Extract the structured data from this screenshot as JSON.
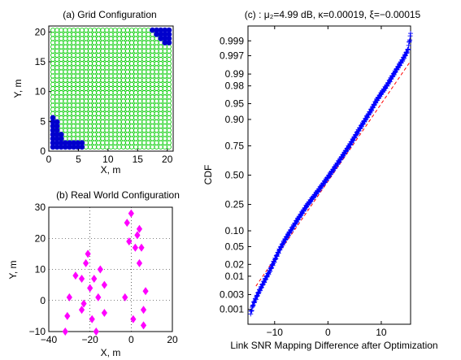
{
  "chart_data": [
    {
      "type": "scatter",
      "title": "(a)   Grid Configuration",
      "xlabel": "X, m",
      "ylabel": "Y, m",
      "xlim": [
        0,
        21
      ],
      "ylim": [
        0,
        21
      ],
      "x_ticks": [
        "0",
        "5",
        "10",
        "15",
        "20"
      ],
      "y_ticks": [
        "0",
        "5",
        "10",
        "15",
        "20"
      ],
      "grid": false,
      "colors": {
        "grid_marker": "#00cc00",
        "selected_marker": "#0000cc"
      },
      "grid_points": {
        "spacing": 0.7,
        "start": 0.7,
        "end": 20.3
      },
      "series": [
        {
          "values": [
            [
              0.7,
              0.7
            ],
            [
              1.4,
              0.7
            ],
            [
              2.1,
              0.7
            ],
            [
              2.8,
              0.7
            ],
            [
              3.5,
              0.7
            ],
            [
              4.2,
              0.7
            ],
            [
              4.9,
              0.7
            ],
            [
              5.6,
              0.7
            ],
            [
              0.7,
              1.4
            ],
            [
              1.4,
              1.4
            ],
            [
              2.1,
              1.4
            ],
            [
              2.8,
              1.4
            ],
            [
              3.5,
              1.4
            ],
            [
              4.2,
              1.4
            ],
            [
              4.9,
              1.4
            ],
            [
              5.6,
              1.4
            ],
            [
              0.7,
              2.1
            ],
            [
              1.4,
              2.1
            ],
            [
              2.1,
              2.1
            ],
            [
              0.7,
              2.8
            ],
            [
              1.4,
              2.8
            ],
            [
              2.1,
              2.8
            ],
            [
              0.7,
              3.5
            ],
            [
              1.4,
              3.5
            ],
            [
              0.7,
              4.2
            ],
            [
              1.4,
              4.2
            ],
            [
              0.7,
              4.9
            ],
            [
              1.4,
              4.9
            ],
            [
              0.7,
              5.6
            ],
            [
              17.5,
              20.3
            ],
            [
              18.2,
              20.3
            ],
            [
              18.9,
              20.3
            ],
            [
              19.6,
              20.3
            ],
            [
              20.3,
              20.3
            ],
            [
              18.2,
              19.6
            ],
            [
              18.9,
              19.6
            ],
            [
              19.6,
              19.6
            ],
            [
              20.3,
              19.6
            ],
            [
              18.9,
              18.9
            ],
            [
              19.6,
              18.9
            ],
            [
              20.3,
              18.9
            ],
            [
              19.6,
              18.2
            ],
            [
              20.3,
              18.2
            ]
          ]
        }
      ]
    },
    {
      "type": "scatter",
      "title": "(b)   Real World Configuration",
      "xlabel": "X, m",
      "ylabel": "Y, m",
      "xlim": [
        -40,
        20
      ],
      "ylim": [
        -10,
        30
      ],
      "x_ticks": [
        "−40",
        "−20",
        "0",
        "20"
      ],
      "y_ticks": [
        "−10",
        "0",
        "10",
        "20",
        "30"
      ],
      "grid": true,
      "colors": {
        "marker": "#ff00ff"
      },
      "series": [
        {
          "values": [
            [
              -32,
              -10
            ],
            [
              -31,
              -5
            ],
            [
              -30,
              1
            ],
            [
              -27,
              8
            ],
            [
              -24,
              -3
            ],
            [
              -24,
              7
            ],
            [
              -23,
              -1
            ],
            [
              -22,
              12
            ],
            [
              -21,
              15
            ],
            [
              -20,
              4
            ],
            [
              -19,
              -6
            ],
            [
              -18,
              7
            ],
            [
              -17,
              -10
            ],
            [
              -16,
              1
            ],
            [
              -15,
              10
            ],
            [
              -13,
              -4
            ],
            [
              -13,
              5
            ],
            [
              -3,
              1
            ],
            [
              -2,
              25
            ],
            [
              -1,
              19
            ],
            [
              0,
              28
            ],
            [
              1,
              -6
            ],
            [
              2,
              17
            ],
            [
              3,
              21
            ],
            [
              4,
              23
            ],
            [
              4,
              12
            ],
            [
              5,
              17
            ],
            [
              6,
              -3
            ],
            [
              6,
              -8
            ],
            [
              7,
              3
            ]
          ]
        }
      ]
    },
    {
      "type": "scatter",
      "title": "(c) : μ₂=4.99 dB,   κ=0.00019,  ξ=−0.00015",
      "xlabel": "Link SNR Mapping Difference after Optimization",
      "ylabel": "CDF",
      "xlim": [
        -15,
        15.5
      ],
      "scale": "normal-probability",
      "y_tick_values": [
        0.001,
        0.003,
        0.01,
        0.02,
        0.05,
        0.1,
        0.25,
        0.5,
        0.75,
        0.9,
        0.95,
        0.98,
        0.99,
        0.997,
        0.999
      ],
      "y_ticks": [
        "0.001",
        "0.003",
        "0.01",
        "0.02",
        "0.05",
        "0.10",
        "0.25",
        "0.50",
        "0.75",
        "0.90",
        "0.95",
        "0.98",
        "0.99",
        "0.997",
        "0.999"
      ],
      "x_ticks": [
        "−10",
        "0",
        "10"
      ],
      "x_tick_values": [
        -10,
        0,
        10
      ],
      "grid": false,
      "colors": {
        "marker": "#0000ff",
        "fit_line": "#ff0000"
      },
      "series": [
        {
          "x_range": [
            -14.5,
            15.5
          ],
          "cdf_at_x": [
            [
              -14.5,
              0.0007
            ],
            [
              -14.3,
              0.001
            ],
            [
              -14.0,
              0.0015
            ],
            [
              -13.2,
              0.003
            ],
            [
              -11.8,
              0.008
            ],
            [
              -11.0,
              0.013
            ],
            [
              -10.0,
              0.025
            ],
            [
              -9.0,
              0.045
            ],
            [
              -8.0,
              0.07
            ],
            [
              -6.0,
              0.14
            ],
            [
              -4.0,
              0.24
            ],
            [
              -2.0,
              0.35
            ],
            [
              0.0,
              0.48
            ],
            [
              2.0,
              0.62
            ],
            [
              4.0,
              0.75
            ],
            [
              6.0,
              0.86
            ],
            [
              8.0,
              0.93
            ],
            [
              9.0,
              0.955
            ],
            [
              10.0,
              0.97
            ],
            [
              11.0,
              0.98
            ],
            [
              12.0,
              0.988
            ],
            [
              13.0,
              0.993
            ],
            [
              14.0,
              0.996
            ],
            [
              15.0,
              0.998
            ],
            [
              15.5,
              0.9994
            ]
          ]
        }
      ],
      "fit_line": {
        "mean": 0.8,
        "std": 5.6
      }
    }
  ]
}
